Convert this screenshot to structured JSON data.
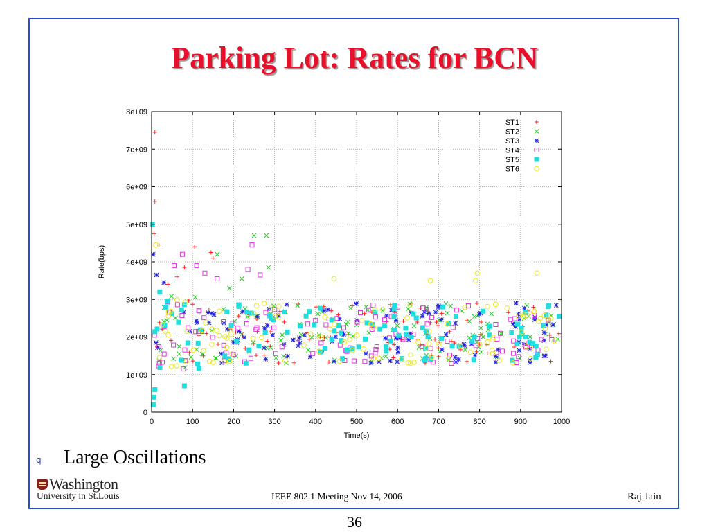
{
  "slide": {
    "title": "Parking Lot: Rates for BCN",
    "bullet_marker": "q",
    "bullet_text": "Large Oscillations",
    "logo_line1": "Washington",
    "logo_line2": "University in St.Louis",
    "footer_center": "IEEE 802.1 Meeting  Nov 14, 2006",
    "footer_right": "Raj Jain",
    "page_number": "36"
  },
  "chart_data": {
    "type": "scatter",
    "title": "",
    "xlabel": "Time(s)",
    "ylabel": "Rate(bps)",
    "xlim": [
      0,
      1000
    ],
    "ylim": [
      0,
      8000000000
    ],
    "xticks": [
      "0",
      "100",
      "200",
      "300",
      "400",
      "500",
      "600",
      "700",
      "800",
      "900",
      "1000"
    ],
    "yticks": [
      "0",
      "1e+09",
      "2e+09",
      "3e+09",
      "4e+09",
      "5e+09",
      "6e+09",
      "7e+09",
      "8e+09"
    ],
    "grid": true,
    "legend_position": "top-right",
    "steady_band": [
      1300000000,
      2900000000
    ],
    "series": [
      {
        "name": "ST1",
        "marker": "plus",
        "color": "#ff2020",
        "count": 110,
        "outliers": [
          [
            8,
            7450000000
          ],
          [
            8,
            5600000000
          ],
          [
            6,
            4750000000
          ],
          [
            18,
            4450000000
          ],
          [
            80,
            3850000000
          ],
          [
            105,
            4400000000
          ],
          [
            145,
            4250000000
          ],
          [
            150,
            4100000000
          ],
          [
            40,
            3400000000
          ],
          [
            62,
            3600000000
          ]
        ]
      },
      {
        "name": "ST2",
        "marker": "x",
        "color": "#22cc22",
        "count": 110,
        "outliers": [
          [
            250,
            4700000000
          ],
          [
            280,
            4700000000
          ],
          [
            160,
            4200000000
          ],
          [
            285,
            3850000000
          ],
          [
            190,
            3300000000
          ],
          [
            220,
            3550000000
          ]
        ]
      },
      {
        "name": "ST3",
        "marker": "star",
        "color": "#2222dd",
        "count": 110,
        "outliers": [
          [
            4,
            4200000000
          ],
          [
            12,
            3650000000
          ],
          [
            30,
            3450000000
          ]
        ]
      },
      {
        "name": "ST4",
        "marker": "square",
        "color": "#dd33dd",
        "count": 110,
        "outliers": [
          [
            245,
            4450000000
          ],
          [
            75,
            4200000000
          ],
          [
            110,
            3900000000
          ],
          [
            55,
            3900000000
          ],
          [
            160,
            3550000000
          ],
          [
            130,
            3700000000
          ],
          [
            235,
            3800000000
          ],
          [
            265,
            3650000000
          ]
        ]
      },
      {
        "name": "ST5",
        "marker": "filled-square",
        "color": "#22dddd",
        "count": 110,
        "outliers": [
          [
            2,
            5000000000
          ],
          [
            4,
            200000000
          ],
          [
            6,
            400000000
          ],
          [
            8,
            600000000
          ],
          [
            20,
            3200000000
          ],
          [
            80,
            700000000
          ]
        ]
      },
      {
        "name": "ST6",
        "marker": "circle",
        "color": "#e8e820",
        "count": 110,
        "outliers": [
          [
            10,
            4450000000
          ],
          [
            445,
            3550000000
          ],
          [
            790,
            3500000000
          ],
          [
            795,
            3700000000
          ],
          [
            940,
            3700000000
          ],
          [
            680,
            3500000000
          ]
        ]
      }
    ]
  }
}
